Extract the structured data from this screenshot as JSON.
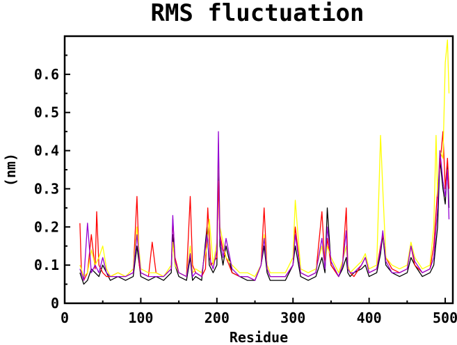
{
  "chart_data": {
    "type": "line",
    "title": "RMS fluctuation",
    "xlabel": "Residue",
    "ylabel": "(nm)",
    "xlim": [
      0,
      510
    ],
    "ylim": [
      0,
      0.7
    ],
    "x_ticks": [
      0,
      100,
      200,
      300,
      400,
      500
    ],
    "x_tick_labels": [
      "0",
      "100",
      "200",
      "300",
      "400",
      "500"
    ],
    "y_ticks": [
      0,
      0.1,
      0.2,
      0.3,
      0.4,
      0.5,
      0.6
    ],
    "y_tick_labels": [
      "0",
      "0.1",
      "0.2",
      "0.3",
      "0.4",
      "0.5",
      "0.6"
    ],
    "grid": false,
    "legend": "none",
    "colors": [
      "#000000",
      "#ff0000",
      "#ffff00",
      "#9400d3"
    ],
    "series": [
      {
        "color": "#000000",
        "x": [
          20,
          25,
          30,
          35,
          40,
          45,
          50,
          55,
          60,
          70,
          80,
          90,
          95,
          100,
          110,
          120,
          130,
          140,
          142,
          145,
          150,
          160,
          165,
          168,
          172,
          180,
          187,
          190,
          195,
          200,
          202,
          204,
          208,
          212,
          220,
          230,
          240,
          250,
          258,
          262,
          266,
          270,
          280,
          290,
          300,
          303,
          310,
          320,
          330,
          338,
          342,
          345,
          350,
          360,
          365,
          370,
          372,
          375,
          380,
          390,
          395,
          400,
          410,
          415,
          418,
          422,
          430,
          440,
          450,
          455,
          460,
          470,
          480,
          485,
          490,
          493,
          497,
          500,
          503,
          505
        ],
        "y": [
          0.08,
          0.05,
          0.06,
          0.09,
          0.08,
          0.07,
          0.1,
          0.08,
          0.06,
          0.07,
          0.06,
          0.07,
          0.15,
          0.07,
          0.06,
          0.07,
          0.06,
          0.08,
          0.18,
          0.1,
          0.07,
          0.06,
          0.12,
          0.06,
          0.07,
          0.06,
          0.2,
          0.1,
          0.08,
          0.1,
          0.4,
          0.15,
          0.1,
          0.15,
          0.08,
          0.07,
          0.06,
          0.06,
          0.1,
          0.15,
          0.08,
          0.06,
          0.06,
          0.06,
          0.1,
          0.15,
          0.07,
          0.06,
          0.07,
          0.12,
          0.08,
          0.25,
          0.1,
          0.07,
          0.09,
          0.12,
          0.08,
          0.07,
          0.08,
          0.09,
          0.1,
          0.07,
          0.08,
          0.13,
          0.18,
          0.1,
          0.08,
          0.07,
          0.08,
          0.12,
          0.1,
          0.07,
          0.08,
          0.1,
          0.2,
          0.38,
          0.3,
          0.26,
          0.37,
          0.25
        ]
      },
      {
        "color": "#ff0000",
        "x": [
          20,
          22,
          25,
          30,
          35,
          40,
          42,
          45,
          50,
          55,
          60,
          70,
          80,
          90,
          95,
          98,
          100,
          110,
          115,
          120,
          130,
          140,
          142,
          145,
          150,
          160,
          165,
          168,
          172,
          180,
          185,
          188,
          192,
          200,
          202,
          204,
          208,
          212,
          220,
          230,
          240,
          250,
          258,
          262,
          266,
          270,
          280,
          290,
          300,
          303,
          310,
          320,
          330,
          338,
          342,
          345,
          350,
          360,
          365,
          370,
          372,
          375,
          380,
          390,
          395,
          400,
          410,
          415,
          418,
          422,
          430,
          440,
          450,
          455,
          460,
          470,
          480,
          485,
          490,
          493,
          497,
          500,
          503,
          505
        ],
        "y": [
          0.21,
          0.08,
          0.06,
          0.08,
          0.18,
          0.09,
          0.24,
          0.1,
          0.08,
          0.07,
          0.07,
          0.08,
          0.07,
          0.08,
          0.28,
          0.1,
          0.08,
          0.07,
          0.16,
          0.08,
          0.07,
          0.09,
          0.22,
          0.12,
          0.08,
          0.07,
          0.28,
          0.1,
          0.08,
          0.07,
          0.09,
          0.25,
          0.1,
          0.12,
          0.32,
          0.18,
          0.14,
          0.12,
          0.08,
          0.07,
          0.07,
          0.06,
          0.1,
          0.25,
          0.09,
          0.07,
          0.07,
          0.07,
          0.1,
          0.2,
          0.08,
          0.07,
          0.08,
          0.24,
          0.1,
          0.17,
          0.1,
          0.07,
          0.1,
          0.25,
          0.1,
          0.08,
          0.07,
          0.1,
          0.12,
          0.08,
          0.09,
          0.15,
          0.18,
          0.12,
          0.09,
          0.08,
          0.09,
          0.15,
          0.1,
          0.08,
          0.09,
          0.15,
          0.3,
          0.36,
          0.45,
          0.3,
          0.38,
          0.3
        ]
      },
      {
        "color": "#ffff00",
        "x": [
          20,
          25,
          30,
          35,
          40,
          45,
          50,
          55,
          60,
          70,
          80,
          90,
          95,
          100,
          110,
          120,
          130,
          140,
          142,
          145,
          150,
          160,
          165,
          168,
          172,
          180,
          187,
          190,
          195,
          200,
          202,
          204,
          208,
          212,
          220,
          230,
          240,
          250,
          258,
          262,
          266,
          270,
          280,
          290,
          300,
          303,
          310,
          320,
          330,
          338,
          342,
          345,
          350,
          360,
          365,
          370,
          372,
          375,
          380,
          390,
          395,
          400,
          410,
          415,
          418,
          422,
          430,
          440,
          450,
          455,
          460,
          470,
          480,
          485,
          488,
          490,
          493,
          497,
          500,
          503,
          505
        ],
        "y": [
          0.1,
          0.07,
          0.08,
          0.14,
          0.1,
          0.12,
          0.15,
          0.09,
          0.07,
          0.08,
          0.07,
          0.09,
          0.2,
          0.09,
          0.08,
          0.08,
          0.07,
          0.1,
          0.16,
          0.1,
          0.08,
          0.07,
          0.15,
          0.08,
          0.09,
          0.08,
          0.15,
          0.22,
          0.1,
          0.16,
          0.42,
          0.2,
          0.16,
          0.12,
          0.1,
          0.08,
          0.08,
          0.07,
          0.1,
          0.18,
          0.1,
          0.08,
          0.08,
          0.08,
          0.12,
          0.27,
          0.09,
          0.08,
          0.09,
          0.15,
          0.1,
          0.15,
          0.12,
          0.08,
          0.11,
          0.15,
          0.1,
          0.08,
          0.09,
          0.11,
          0.13,
          0.09,
          0.1,
          0.44,
          0.3,
          0.12,
          0.1,
          0.09,
          0.1,
          0.16,
          0.12,
          0.09,
          0.1,
          0.2,
          0.44,
          0.28,
          0.4,
          0.38,
          0.63,
          0.69,
          0.55
        ]
      },
      {
        "color": "#9400d3",
        "x": [
          20,
          25,
          30,
          35,
          40,
          45,
          50,
          55,
          60,
          70,
          80,
          90,
          95,
          100,
          110,
          120,
          130,
          140,
          142,
          145,
          150,
          160,
          165,
          168,
          172,
          180,
          187,
          190,
          195,
          200,
          202,
          204,
          208,
          212,
          220,
          230,
          240,
          250,
          258,
          262,
          266,
          270,
          280,
          290,
          300,
          303,
          310,
          320,
          330,
          338,
          342,
          345,
          350,
          360,
          365,
          370,
          372,
          375,
          380,
          390,
          395,
          400,
          410,
          415,
          418,
          422,
          430,
          440,
          450,
          455,
          460,
          470,
          480,
          485,
          490,
          493,
          497,
          500,
          503,
          505
        ],
        "y": [
          0.09,
          0.06,
          0.21,
          0.08,
          0.1,
          0.08,
          0.12,
          0.08,
          0.07,
          0.07,
          0.07,
          0.08,
          0.18,
          0.08,
          0.07,
          0.07,
          0.07,
          0.09,
          0.23,
          0.11,
          0.08,
          0.07,
          0.13,
          0.07,
          0.08,
          0.07,
          0.18,
          0.12,
          0.09,
          0.14,
          0.45,
          0.17,
          0.12,
          0.17,
          0.09,
          0.07,
          0.07,
          0.06,
          0.1,
          0.17,
          0.09,
          0.07,
          0.07,
          0.07,
          0.1,
          0.18,
          0.08,
          0.07,
          0.08,
          0.17,
          0.09,
          0.2,
          0.11,
          0.07,
          0.1,
          0.19,
          0.09,
          0.08,
          0.08,
          0.1,
          0.12,
          0.08,
          0.09,
          0.14,
          0.19,
          0.11,
          0.08,
          0.08,
          0.09,
          0.15,
          0.11,
          0.08,
          0.09,
          0.12,
          0.25,
          0.4,
          0.32,
          0.28,
          0.35,
          0.22
        ]
      }
    ]
  }
}
